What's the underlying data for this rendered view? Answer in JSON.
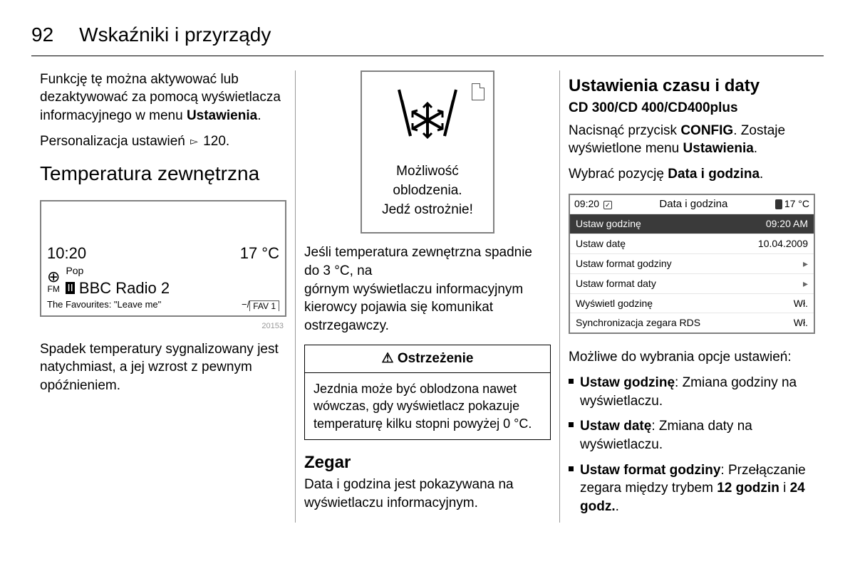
{
  "header": {
    "page_number": "92",
    "chapter": "Wskaźniki i przyrządy"
  },
  "col1": {
    "p1a": "Funkcję tę można aktywować lub dezaktywować za pomocą wyświetlacza informacyjnego w menu ",
    "p1b_bold": "Ustawienia",
    "p1c": ".",
    "p2a": "Personalizacja ustawień ",
    "p2b": " 120.",
    "h_temp": "Temperatura zewnętrzna",
    "radio": {
      "time": "10:20",
      "temp": "17 °C",
      "genre": "Pop",
      "fm": "FM",
      "station": "BBC Radio 2",
      "track": "The Favourites: \"Leave me\"",
      "fav": "FAV 1"
    },
    "img_code": "20153",
    "p3": "Spadek temperatury sygnalizowany jest natychmiast, a jej wzrost z pewnym opóźnieniem."
  },
  "col2": {
    "ice": {
      "l1": "Możliwość",
      "l2": "oblodzenia.",
      "l3": "Jedź ostrożnie!"
    },
    "p1": "Jeśli temperatura zewnętrzna spadnie do 3 °C, na górnym wyświetlaczu informacyjnym kierowcy pojawia się komunikat ostrzegawczy.",
    "warn_head": "Ostrzeżenie",
    "warn_body": "Jezdnia może być oblodzona nawet wówczas, gdy wyświetlacz pokazuje temperaturę kilku stopni powyżej 0 °C.",
    "h_clock": "Zegar",
    "p2": "Data i godzina jest pokazywana na wyświetlaczu informacyjnym."
  },
  "col3": {
    "h_dt": "Ustawienia czasu i daty",
    "h_cd": "CD 300/CD 400/CD400plus",
    "p1a": "Nacisnąć przycisk ",
    "p1b_bold": "CONFIG",
    "p1c": ". Zostaje wyświetlone menu ",
    "p1d_bold": "Ustawienia",
    "p1e": ".",
    "p2a": "Wybrać pozycję ",
    "p2b_bold": "Data i godzina",
    "p2c": ".",
    "dt": {
      "clock": "09:20",
      "title": "Data i godzina",
      "temp": "17 °C",
      "rows": [
        {
          "label": "Ustaw godzinę",
          "val": "09:20 AM",
          "sel": true
        },
        {
          "label": "Ustaw datę",
          "val": "10.04.2009"
        },
        {
          "label": "Ustaw format godziny",
          "val": "▸"
        },
        {
          "label": "Ustaw format daty",
          "val": "▸"
        },
        {
          "label": "Wyświetl godzinę",
          "val": "Wł."
        },
        {
          "label": "Synchronizacja zegara RDS",
          "val": "Wł."
        }
      ]
    },
    "p3": "Możliwe do wybrania opcje ustawień:",
    "opts": [
      {
        "b": "Ustaw godzinę",
        "t": ": Zmiana godziny na wyświetlaczu."
      },
      {
        "b": "Ustaw datę",
        "t": ": Zmiana daty na wyświetlaczu."
      },
      {
        "b": "Ustaw format godziny",
        "t": ": Przełączanie zegara między trybem ",
        "b2": "12 godzin",
        "t2": " i ",
        "b3": "24 godz.",
        "t3": "."
      }
    ]
  }
}
